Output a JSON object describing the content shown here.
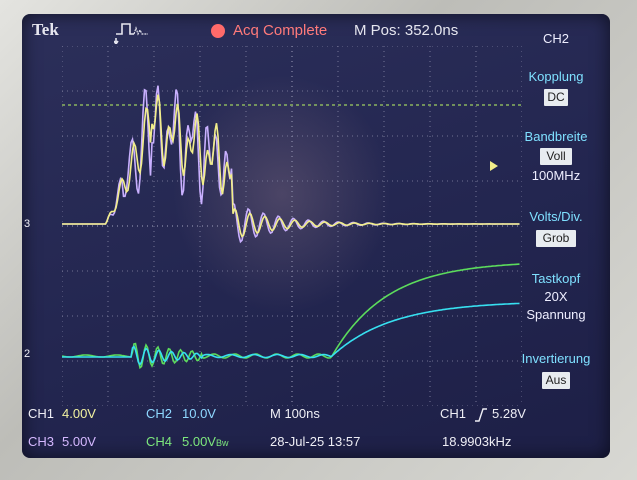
{
  "topbar": {
    "brand": "Tek",
    "acquisition_status": "Acq Complete",
    "m_pos_label": "M Pos:",
    "m_pos_value": "352.0ns",
    "trigger_marker_icon": "arrow-down-icon",
    "acquisition_dot_color": "#ff6a6a"
  },
  "menu": {
    "channel": "CH2",
    "coupling_title": "Kopplung",
    "coupling_value": "DC",
    "bandwidth_title": "Bandbreite",
    "bandwidth_value": "Voll",
    "bandwidth_freq": "100MHz",
    "volts_div_title": "Volts/Div.",
    "volts_div_value": "Grob",
    "probe_title": "Tastkopf",
    "probe_ratio": "20X",
    "probe_type": "Spannung",
    "invert_title": "Invertierung",
    "invert_value": "Aus"
  },
  "status": {
    "ch1": "CH1",
    "ch1_scale": "4.00V",
    "ch2": "CH2",
    "ch2_scale": "10.0V",
    "ch3": "CH3",
    "ch3_scale": "5.00V",
    "ch4": "CH4",
    "ch4_scale": "5.00V",
    "ch4_bw": "Bw",
    "timebase": "M 100ns",
    "date_time": "28-Jul-25 13:57",
    "trigger_source": "CH1",
    "trigger_slope_icon": "rising-edge-icon",
    "trigger_level": "5.28V",
    "frequency": "18.9903kHz"
  },
  "markers": {
    "ch3_ref": "3",
    "ch2_ref": "2"
  },
  "colors": {
    "ch1": "#f2ee8a",
    "ch2": "#37e0f0",
    "ch3": "#c9b0ff",
    "ch4": "#5cdc5c",
    "grid": "#8a8aa8",
    "menu_title": "#7fe0ff",
    "ref_line": "#9fd060"
  }
}
